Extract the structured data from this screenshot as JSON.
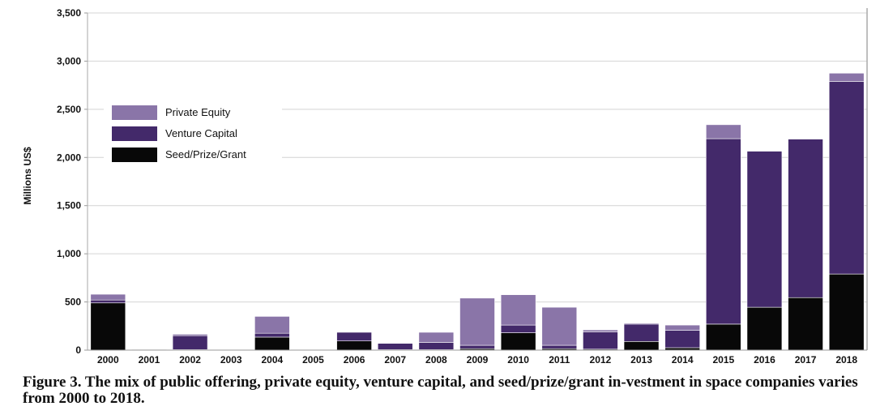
{
  "caption": "Figure 3. The mix of public offering, private equity, venture capital, and seed/prize/grant in-vestment in space companies varies from 2000 to 2018.",
  "chart_data": {
    "type": "bar",
    "stacked": true,
    "ylabel": "Millions US$",
    "xlabel": "",
    "ylim": [
      0,
      3500
    ],
    "yticks": [
      0,
      500,
      1000,
      1500,
      2000,
      2500,
      3000,
      3500
    ],
    "ytick_labels": [
      "0",
      "500",
      "1,000",
      "1,500",
      "2,000",
      "2,500",
      "3,000",
      "3,500"
    ],
    "grid": "horizontal",
    "legend_position": "upper-left",
    "categories": [
      "2000",
      "2001",
      "2002",
      "2003",
      "2004",
      "2005",
      "2006",
      "2007",
      "2008",
      "2009",
      "2010",
      "2011",
      "2012",
      "2013",
      "2014",
      "2015",
      "2016",
      "2017",
      "2018"
    ],
    "series": [
      {
        "name": "Seed/Prize/Grant",
        "color": "#080808",
        "values": [
          490,
          5,
          5,
          0,
          135,
          0,
          95,
          5,
          5,
          15,
          180,
          15,
          10,
          90,
          25,
          270,
          445,
          545,
          790
        ]
      },
      {
        "name": "Venture Capital",
        "color": "#43296a",
        "values": [
          30,
          0,
          145,
          0,
          40,
          5,
          90,
          65,
          75,
          35,
          80,
          35,
          180,
          180,
          180,
          1925,
          1620,
          1645,
          2000
        ]
      },
      {
        "name": "Private Equity",
        "color": "#8a75a8",
        "values": [
          60,
          0,
          15,
          0,
          175,
          5,
          0,
          0,
          105,
          490,
          315,
          395,
          20,
          10,
          55,
          145,
          0,
          0,
          85
        ]
      }
    ],
    "legend_order": [
      "Private Equity",
      "Venture Capital",
      "Seed/Prize/Grant"
    ]
  }
}
